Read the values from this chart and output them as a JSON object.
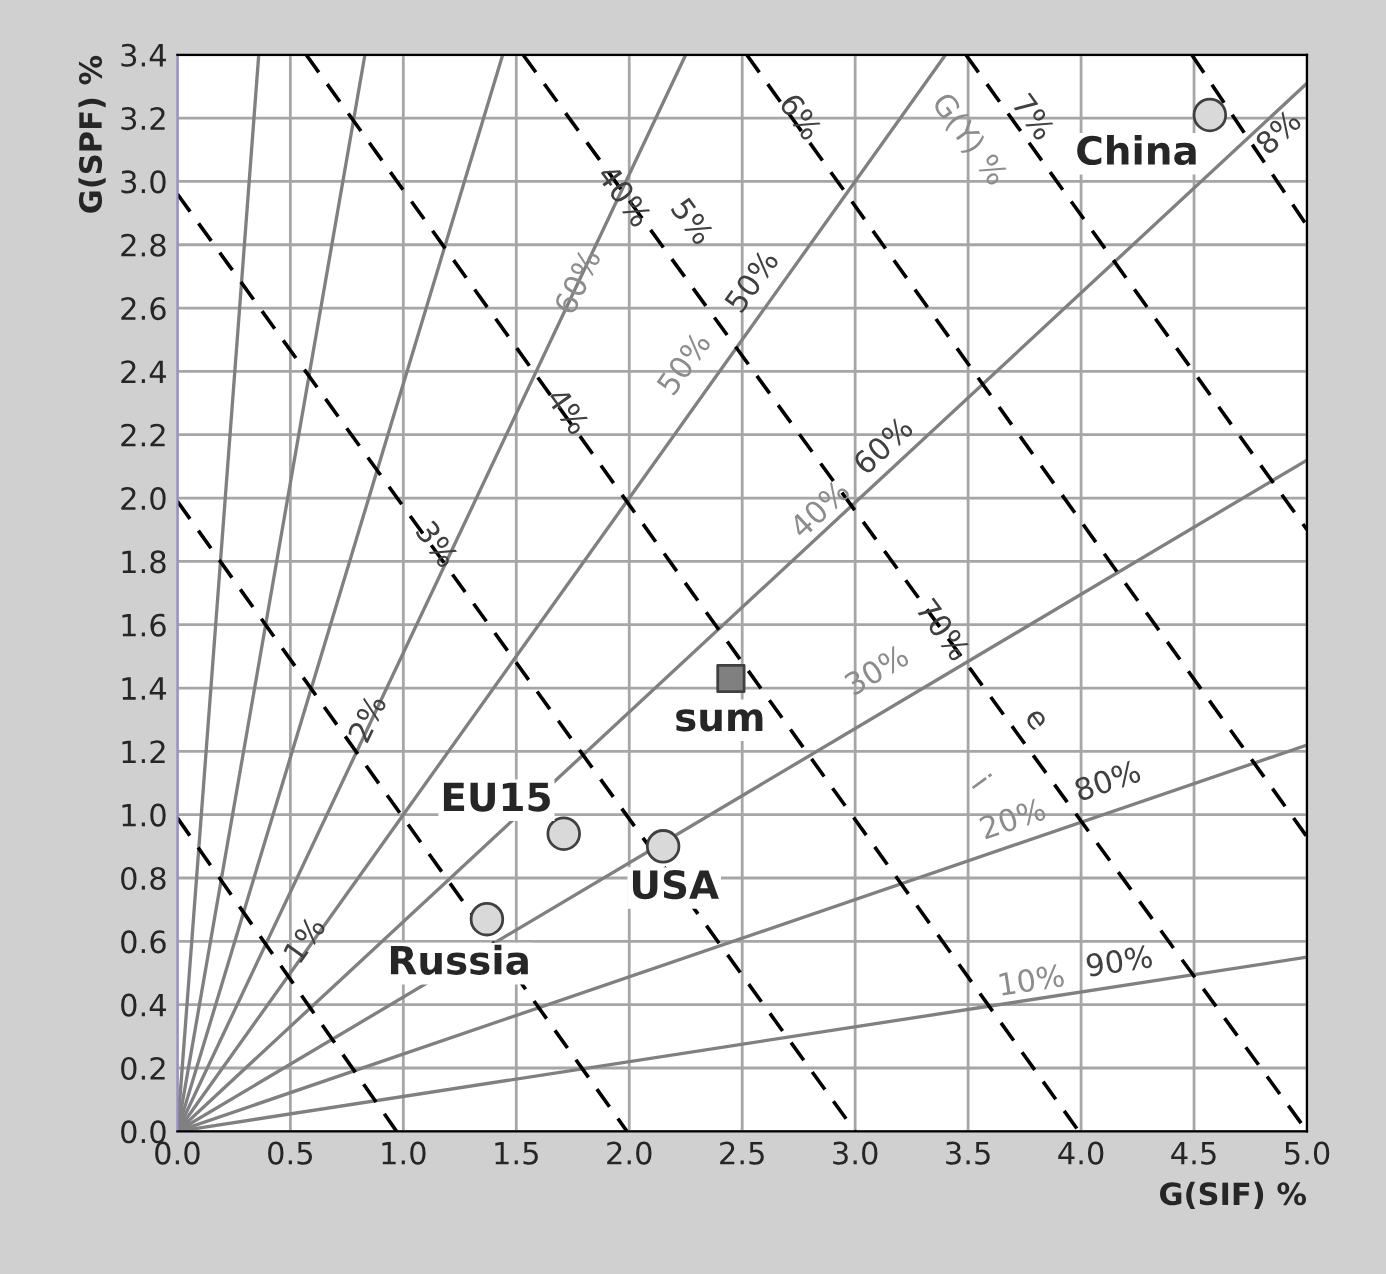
{
  "chart_data": {
    "type": "line",
    "xlabel": "G(SIF) %",
    "ylabel": "G(SPF) %",
    "xlim": [
      0,
      5
    ],
    "ylim": [
      0,
      3.4
    ],
    "xticks": [
      {
        "value": 0,
        "label": "0.0"
      },
      {
        "value": 0.5,
        "label": "0.5"
      },
      {
        "value": 1,
        "label": "1.0"
      },
      {
        "value": 1.5,
        "label": "1.5"
      },
      {
        "value": 2,
        "label": "2.0"
      },
      {
        "value": 2.5,
        "label": "2.5"
      },
      {
        "value": 3,
        "label": "3.0"
      },
      {
        "value": 3.5,
        "label": "3.5"
      },
      {
        "value": 4,
        "label": "4.0"
      },
      {
        "value": 4.5,
        "label": "4.5"
      },
      {
        "value": 5,
        "label": "5.0"
      }
    ],
    "yticks": [
      {
        "value": 0,
        "label": "0.0"
      },
      0.2,
      0.4,
      0.6,
      0.8,
      {
        "value": 1,
        "label": "1.0"
      },
      1.2,
      1.4,
      1.6,
      1.8,
      {
        "value": 2,
        "label": "2.0"
      },
      2.2,
      2.4,
      2.6,
      2.8,
      {
        "value": 3,
        "label": "3.0"
      },
      3.2,
      3.4
    ],
    "grid": true,
    "series": [
      {
        "color": "#808080",
        "line_style": "solid",
        "x": [
          0,
          5
        ],
        "values": [
          0,
          0.55
        ]
      },
      {
        "color": "#808080",
        "line_style": "solid",
        "x": [
          0,
          5
        ],
        "values": [
          0,
          1.22
        ]
      },
      {
        "color": "#808080",
        "line_style": "solid",
        "x": [
          0,
          5
        ],
        "values": [
          0,
          2.12
        ]
      },
      {
        "color": "#808080",
        "line_style": "solid",
        "x": [
          0,
          5
        ],
        "values": [
          0,
          3.31
        ]
      },
      {
        "color": "#808080",
        "line_style": "solid",
        "x": [
          0,
          3.4
        ],
        "values": [
          0,
          3.4
        ]
      },
      {
        "color": "#808080",
        "line_style": "solid",
        "x": [
          0,
          2.25
        ],
        "values": [
          0,
          3.4
        ]
      },
      {
        "color": "#808080",
        "line_style": "solid",
        "x": [
          0,
          1.44
        ],
        "values": [
          0,
          3.4
        ]
      },
      {
        "color": "#808080",
        "line_style": "solid",
        "x": [
          0,
          0.83
        ],
        "values": [
          0,
          3.4
        ]
      },
      {
        "color": "#808080",
        "line_style": "solid",
        "x": [
          0,
          0.36
        ],
        "values": [
          0,
          3.4
        ]
      },
      {
        "color": "#000000",
        "line_style": "dashed",
        "x": [
          0,
          0.97
        ],
        "values": [
          0.99,
          0
        ]
      },
      {
        "color": "#000000",
        "line_style": "dashed",
        "x": [
          0,
          1.99
        ],
        "values": [
          1.99,
          0
        ]
      },
      {
        "color": "#000000",
        "line_style": "dashed",
        "x": [
          0,
          3.0
        ],
        "values": [
          2.96,
          0
        ]
      },
      {
        "color": "#000000",
        "line_style": "dashed",
        "x": [
          0.57,
          3.99
        ],
        "values": [
          3.4,
          0
        ]
      },
      {
        "color": "#000000",
        "line_style": "dashed",
        "x": [
          1.53,
          5
        ],
        "values": [
          3.4,
          0
        ]
      },
      {
        "color": "#000000",
        "line_style": "dashed",
        "x": [
          2.52,
          5
        ],
        "values": [
          3.4,
          0.93
        ]
      },
      {
        "color": "#000000",
        "line_style": "dashed",
        "x": [
          3.49,
          5
        ],
        "values": [
          3.4,
          1.9
        ]
      },
      {
        "color": "#000000",
        "line_style": "dashed",
        "x": [
          4.49,
          5
        ],
        "values": [
          3.4,
          2.86
        ]
      },
      {
        "type": "scatter",
        "marker": "circle",
        "color": "#d9d9d9",
        "x": [
          4.57,
          1.71,
          2.15,
          1.37
        ],
        "values": [
          3.21,
          0.94,
          0.9,
          0.67
        ],
        "value_labels": [
          "China",
          "EU15",
          "USA",
          "Russia"
        ]
      },
      {
        "type": "scatter",
        "marker": "square",
        "color": "#808080",
        "x": [
          2.45
        ],
        "values": [
          1.43
        ],
        "value_labels": [
          "sum"
        ]
      }
    ],
    "annotations": [
      "1%",
      "2%",
      "3%",
      "4%",
      "5%",
      "6%",
      "7%",
      "8%",
      "G(Y) %",
      "10%",
      "90%",
      "20%",
      "80%",
      "30%",
      "70%",
      "40%",
      "60%",
      "50%",
      "50%",
      "60%",
      "40%",
      "i",
      "e"
    ]
  }
}
